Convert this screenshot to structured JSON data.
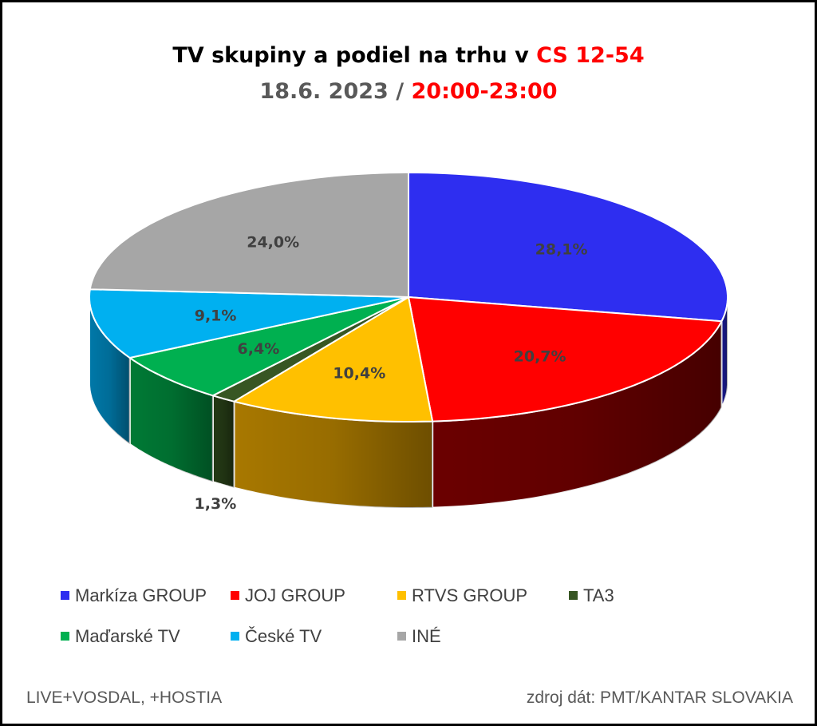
{
  "chart_data": {
    "type": "pie",
    "title_parts": [
      {
        "text": "TV skupiny a podiel na trhu v ",
        "color": "#000000"
      },
      {
        "text": "CS 12-54",
        "color": "#FF0000"
      }
    ],
    "subtitle_parts": [
      {
        "text": "18.6. 2023 / ",
        "color": "#595959"
      },
      {
        "text": "20:00-23:00",
        "color": "#FF0000"
      }
    ],
    "slices": [
      {
        "name": "Markíza GROUP",
        "value": 28.1,
        "label": "28,1%",
        "color": "#2E2EF0",
        "side_color": "#1A1A8C"
      },
      {
        "name": "JOJ GROUP",
        "value": 20.7,
        "label": "20,7%",
        "color": "#FF0000",
        "side_color": "#6B0000"
      },
      {
        "name": "RTVS GROUP",
        "value": 10.4,
        "label": "10,4%",
        "color": "#FFC000",
        "side_color": "#A87800"
      },
      {
        "name": "TA3",
        "value": 1.3,
        "label": "1,3%",
        "color": "#375623",
        "side_color": "#243915"
      },
      {
        "name": "Maďarské  TV",
        "value": 6.4,
        "label": "6,4%",
        "color": "#00B050",
        "side_color": "#007A35"
      },
      {
        "name": "České  TV",
        "value": 9.1,
        "label": "9,1%",
        "color": "#00B0F0",
        "side_color": "#0078A8"
      },
      {
        "name": "INÉ",
        "value": 24.0,
        "label": "24,0%",
        "color": "#A6A6A6",
        "side_color": "#6E6E6E"
      }
    ],
    "legend_position": "bottom"
  },
  "footer": {
    "left": "LIVE+VOSDAL, +HOSTIA",
    "right": "zdroj dát: PMT/KANTAR SLOVAKIA"
  }
}
